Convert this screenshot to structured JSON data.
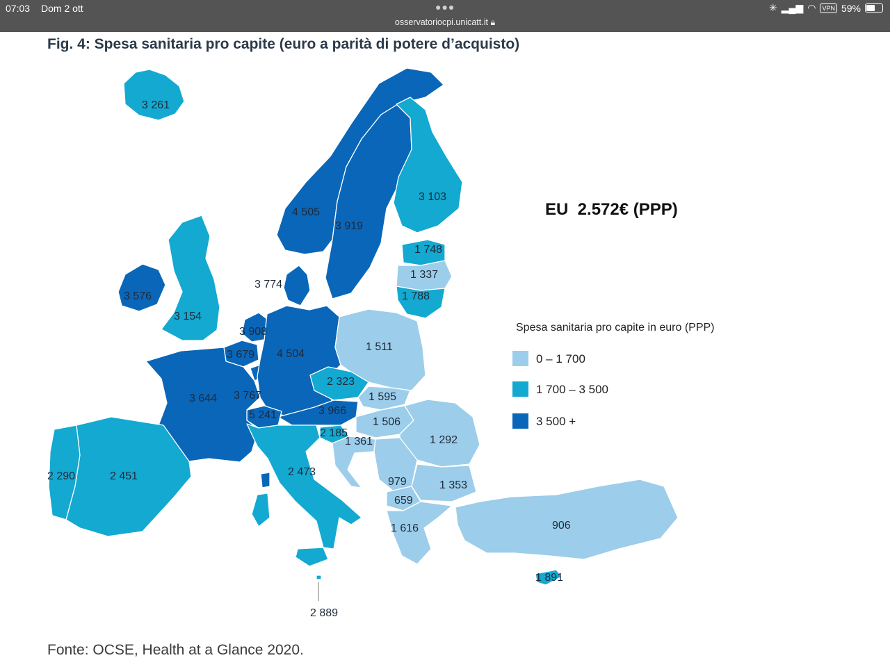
{
  "status_bar": {
    "time": "07:03",
    "date": "Dom 2 ott",
    "url": "osservatoriocpi.unicatt.it",
    "vpn": "VPN",
    "battery": "59%"
  },
  "figure": {
    "title": "Fig. 4: Spesa sanitaria pro capite (euro a parità di potere d’acquisto)",
    "eu_average": "EU  2.572€ (PPP)",
    "source": "Fonte: OCSE, Health at a Glance 2020."
  },
  "legend": {
    "title": "Spesa sanitaria pro capite in euro (PPP)",
    "items": [
      {
        "label": "0 – 1 700",
        "color": "#9ccdea"
      },
      {
        "label": "1 700 – 3 500",
        "color": "#13a9d1"
      },
      {
        "label": "3 500 +",
        "color": "#0a66b8"
      }
    ]
  },
  "colors": {
    "low": "#9ccdea",
    "mid": "#13a9d1",
    "high": "#0a66b8",
    "border": "#ffffff"
  },
  "map_labels": {
    "iceland": "3 261",
    "norway": "4 505",
    "sweden": "3 919",
    "finland": "3 103",
    "estonia": "1 748",
    "latvia": "1 337",
    "lithuania": "1 788",
    "denmark": "3 774",
    "ireland": "3 576",
    "uk": "3 154",
    "netherlands": "3 908",
    "belgium": "3 679",
    "germany": "4 504",
    "poland": "1 511",
    "czechia": "2 323",
    "slovakia": "1 595",
    "austria": "3 966",
    "hungary": "1 506",
    "slovenia": "2 185",
    "croatia": "1 361",
    "romania": "1 292",
    "france": "3 644",
    "luxembourg": "3 767",
    "switzerland": "5 241",
    "italy": "2 473",
    "portugal": "2 290",
    "spain": "2 451",
    "serbia": "979",
    "north_macedonia": "659",
    "bulgaria": "1 353",
    "greece": "1 616",
    "turkey": "906",
    "cyprus": "1 891",
    "malta": "2 889"
  }
}
